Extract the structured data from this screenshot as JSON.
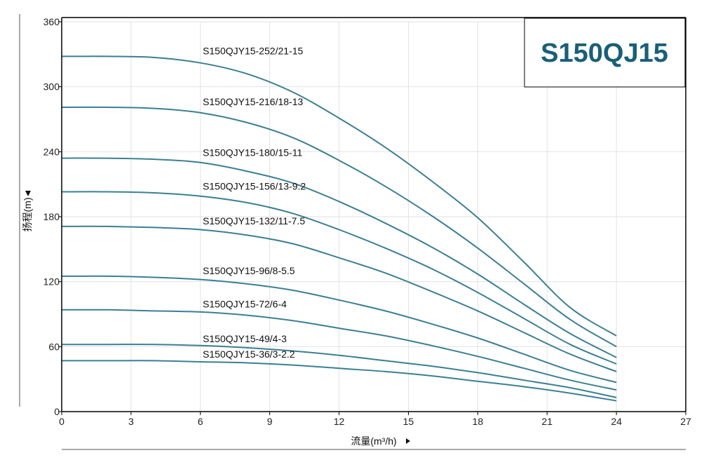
{
  "chart_data": {
    "type": "line",
    "title": "S150QJ15",
    "xlabel": "流量(m³/h)",
    "ylabel": "扬程(m)",
    "xlim": [
      0,
      27
    ],
    "ylim": [
      0,
      360
    ],
    "xticks": [
      0,
      3,
      6,
      9,
      12,
      15,
      18,
      21,
      24,
      27
    ],
    "yticks": [
      0,
      60,
      120,
      180,
      240,
      300,
      360
    ],
    "grid": true,
    "series_color": "#3a7f94",
    "series": [
      {
        "name": "S150QJY15-252/21-15",
        "x": [
          0,
          2,
          4,
          6,
          8,
          10,
          12,
          14,
          16,
          18,
          20,
          22,
          24
        ],
        "values": [
          328,
          328,
          327,
          322,
          312,
          295,
          271,
          244,
          213,
          179,
          138,
          96,
          70
        ]
      },
      {
        "name": "S150QJY15-216/18-13",
        "x": [
          0,
          2,
          4,
          6,
          8,
          10,
          12,
          14,
          16,
          18,
          20,
          22,
          24
        ],
        "values": [
          281,
          281,
          280,
          276,
          267,
          253,
          232,
          208,
          181,
          151,
          118,
          85,
          60
        ]
      },
      {
        "name": "S150QJY15-180/15-11",
        "x": [
          0,
          2,
          4,
          6,
          8,
          10,
          12,
          14,
          16,
          18,
          20,
          22,
          24
        ],
        "values": [
          234,
          234,
          233,
          230,
          222,
          211,
          194,
          174,
          152,
          127,
          99,
          72,
          50
        ]
      },
      {
        "name": "S150QJY15-156/13-9.2",
        "x": [
          0,
          2,
          4,
          6,
          8,
          10,
          12,
          14,
          16,
          18,
          20,
          22,
          24
        ],
        "values": [
          203,
          203,
          202,
          199,
          193,
          183,
          168,
          151,
          132,
          110,
          86,
          62,
          44
        ]
      },
      {
        "name": "S150QJY15-132/11-7.5",
        "x": [
          0,
          2,
          4,
          6,
          8,
          10,
          12,
          14,
          16,
          18,
          20,
          22,
          24
        ],
        "values": [
          171,
          171,
          170,
          168,
          163,
          155,
          142,
          128,
          111,
          93,
          73,
          53,
          37
        ]
      },
      {
        "name": "S150QJY15-96/8-5.5",
        "x": [
          0,
          2,
          4,
          6,
          8,
          10,
          12,
          14,
          16,
          18,
          20,
          22,
          24
        ],
        "values": [
          125,
          125,
          124,
          122,
          118,
          112,
          103,
          93,
          81,
          68,
          53,
          38,
          27
        ]
      },
      {
        "name": "S150QJY15-72/6-4",
        "x": [
          0,
          2,
          4,
          6,
          8,
          10,
          12,
          14,
          16,
          18,
          20,
          22,
          24
        ],
        "values": [
          94,
          94,
          93,
          92,
          89,
          84,
          77,
          70,
          61,
          51,
          40,
          29,
          20
        ]
      },
      {
        "name": "S150QJY15-49/4-3",
        "x": [
          0,
          2,
          4,
          6,
          8,
          10,
          12,
          14,
          16,
          18,
          20,
          22,
          24
        ],
        "values": [
          62,
          62,
          62,
          61,
          59,
          56,
          52,
          47,
          42,
          36,
          29,
          22,
          13
        ]
      },
      {
        "name": "S150QJY15-36/3-2.2",
        "x": [
          0,
          2,
          4,
          6,
          8,
          10,
          12,
          14,
          16,
          18,
          20,
          22,
          24
        ],
        "values": [
          47,
          47,
          47,
          46,
          45,
          43,
          40,
          37,
          33,
          28,
          23,
          17,
          10
        ]
      }
    ],
    "curve_label_x": 6.1,
    "curve_label_y": [
      330,
      283,
      236,
      205,
      173,
      127,
      96,
      64,
      50
    ]
  },
  "colors": {
    "curve": "#3a7f94",
    "title": "#1a5f78",
    "grid": "#e2e2e2",
    "axis": "#000000"
  }
}
